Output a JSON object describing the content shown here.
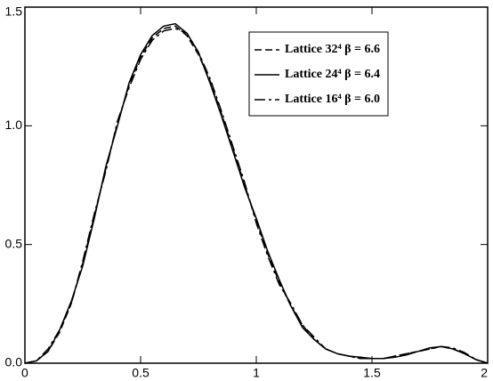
{
  "chart_data": {
    "type": "line",
    "x": [
      0,
      0.05,
      0.1,
      0.15,
      0.2,
      0.25,
      0.3,
      0.35,
      0.4,
      0.45,
      0.5,
      0.55,
      0.6,
      0.65,
      0.7,
      0.75,
      0.8,
      0.85,
      0.9,
      0.95,
      1.0,
      1.05,
      1.1,
      1.15,
      1.2,
      1.25,
      1.3,
      1.35,
      1.4,
      1.45,
      1.5,
      1.55,
      1.6,
      1.65,
      1.7,
      1.75,
      1.8,
      1.85,
      1.9,
      1.95,
      2.0
    ],
    "series": [
      {
        "name": "Lattice 32⁴  β = 6.6",
        "color": "#000000",
        "line_style": "dashed",
        "values": [
          0,
          0.01,
          0.05,
          0.13,
          0.25,
          0.42,
          0.62,
          0.82,
          1.01,
          1.17,
          1.29,
          1.37,
          1.41,
          1.42,
          1.38,
          1.3,
          1.19,
          1.05,
          0.9,
          0.75,
          0.6,
          0.46,
          0.34,
          0.24,
          0.16,
          0.1,
          0.06,
          0.04,
          0.03,
          0.02,
          0.02,
          0.02,
          0.03,
          0.04,
          0.05,
          0.06,
          0.07,
          0.06,
          0.04,
          0.015,
          0
        ]
      },
      {
        "name": "Lattice 24⁴  β = 6.4",
        "color": "#000000",
        "line_style": "solid",
        "values": [
          0,
          0.01,
          0.05,
          0.14,
          0.26,
          0.41,
          0.61,
          0.83,
          1.0,
          1.18,
          1.3,
          1.38,
          1.42,
          1.43,
          1.39,
          1.31,
          1.18,
          1.04,
          0.89,
          0.74,
          0.61,
          0.47,
          0.35,
          0.24,
          0.15,
          0.1,
          0.06,
          0.04,
          0.03,
          0.025,
          0.02,
          0.02,
          0.025,
          0.035,
          0.05,
          0.065,
          0.07,
          0.06,
          0.04,
          0.015,
          0
        ]
      },
      {
        "name": "Lattice 16⁴  β = 6.0",
        "color": "#000000",
        "line_style": "dashdot",
        "values": [
          0,
          0.01,
          0.06,
          0.14,
          0.25,
          0.43,
          0.63,
          0.81,
          1.02,
          1.16,
          1.28,
          1.36,
          1.4,
          1.41,
          1.39,
          1.31,
          1.2,
          1.06,
          0.91,
          0.76,
          0.59,
          0.45,
          0.33,
          0.25,
          0.16,
          0.11,
          0.06,
          0.04,
          0.03,
          0.02,
          0.02,
          0.02,
          0.03,
          0.04,
          0.05,
          0.06,
          0.07,
          0.065,
          0.045,
          0.015,
          0
        ]
      }
    ],
    "xlim": [
      0,
      2
    ],
    "xticks": [
      0,
      0.5,
      1,
      1.5,
      2
    ],
    "ylim": [
      0,
      1.5
    ],
    "yticks": [
      {
        "value": 0,
        "label": "0.0"
      },
      {
        "value": 0.5,
        "label": "0.5"
      },
      {
        "value": 1,
        "label": "1.0"
      },
      {
        "value": 1.5,
        "label": "1.5"
      }
    ],
    "legend": "upper right"
  }
}
